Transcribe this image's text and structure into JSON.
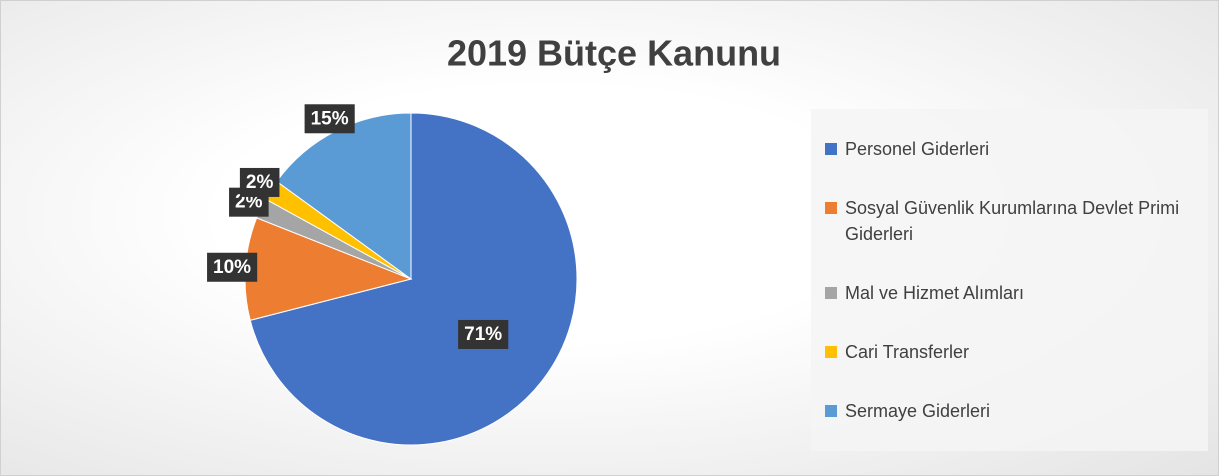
{
  "chart_data": {
    "type": "pie",
    "title": "2019 Bütçe Kanunu",
    "categories": [
      "Personel Giderleri",
      "Sosyal Güvenlik Kurumlarına Devlet Primi Giderleri",
      "Mal ve Hizmet Alımları",
      "Cari Transferler",
      "Sermaye Giderleri"
    ],
    "values": [
      71,
      10,
      2,
      2,
      15
    ],
    "value_labels": [
      "71%",
      "10%",
      "2%",
      "2%",
      "15%"
    ],
    "colors": [
      "#4472c4",
      "#ed7d31",
      "#a5a5a5",
      "#ffc000",
      "#5b9bd5"
    ],
    "legend": "right"
  }
}
